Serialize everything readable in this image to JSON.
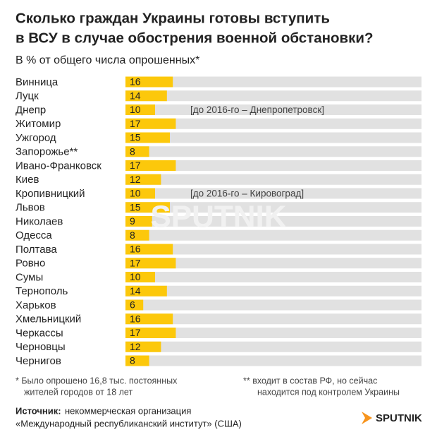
{
  "chart_data": {
    "type": "bar",
    "orientation": "horizontal",
    "title": [
      "Сколько граждан Украины готовы вступить",
      "в ВСУ в случае обострения военной обстановки?"
    ],
    "subtitle": "В % от общего числа опрошенных*",
    "categories": [
      "Винница",
      "Луцк",
      "Днепр",
      "Житомир",
      "Ужгород",
      "Запорожье**",
      "Ивано-Франковск",
      "Киев",
      "Кропивницкий",
      "Львов",
      "Николаев",
      "Одесса",
      "Полтава",
      "Ровно",
      "Сумы",
      "Тернополь",
      "Харьков",
      "Хмельницкий",
      "Черкассы",
      "Черновцы",
      "Чернигов"
    ],
    "values": [
      16,
      14,
      10,
      17,
      15,
      8,
      17,
      12,
      10,
      15,
      9,
      8,
      16,
      17,
      10,
      14,
      6,
      16,
      17,
      12,
      8
    ],
    "color": "#fcc80b",
    "track_color": "#e1e1e1",
    "xlim": [
      0,
      100
    ],
    "annotations": [
      {
        "category": "Днепр",
        "text": "[до 2016-го – Днепропетровск]"
      },
      {
        "category": "Кропивницкий",
        "text": "[до 2016-го – Кировоград]"
      }
    ],
    "footnotes": [
      [
        "* Было опрошено 16,8 тыс. постоянных",
        "жителей городов от 18 лет"
      ],
      [
        "** входит в состав РФ, но сейчас",
        "находится под контролем Украины"
      ]
    ],
    "source_label": "Источник:",
    "source": [
      "некоммерческая организация",
      "«Международный республиканский институт» (США)"
    ],
    "logo": "SPUTNIK"
  }
}
